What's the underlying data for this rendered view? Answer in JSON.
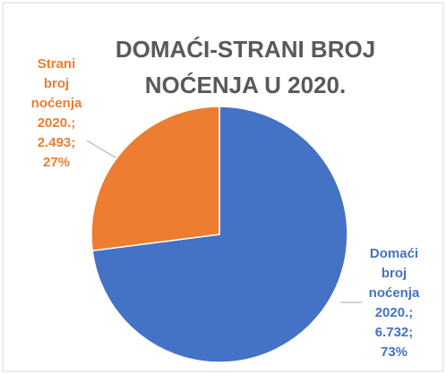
{
  "chart_data": {
    "type": "pie",
    "title_lines": [
      "DOMAĆI-STRANI BROJ",
      "NOĆENJA U 2020."
    ],
    "values": [
      6732,
      2493
    ],
    "colors": [
      "#4472c4",
      "#ed7d31"
    ],
    "data_labels": [
      [
        "Domaći",
        "broj",
        "noćenja",
        "2020.;",
        "6.732;",
        "73%"
      ],
      [
        "Strani",
        "broj",
        "noćenja",
        "2020.;",
        "2.493;",
        "27%"
      ]
    ]
  }
}
